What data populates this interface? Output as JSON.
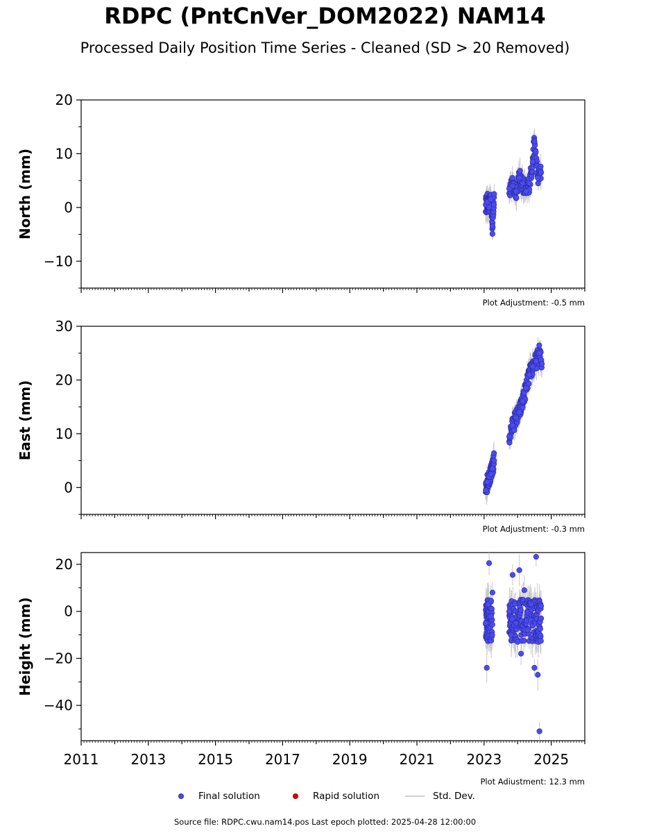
{
  "title": "RDPC (PntCnVer_DOM2022) NAM14",
  "subtitle": "Processed Daily Position Time Series - Cleaned (SD > 20 Removed)",
  "footer": "Source file: RDPC.cwu.nam14.pos  Last epoch plotted: 2025-04-28 12:00:00",
  "legend": {
    "final": "Final solution",
    "rapid": "Rapid solution",
    "sd": "Std. Dev."
  },
  "colors": {
    "final": "#4b4bf0",
    "final_edge": "#2a2a9a",
    "rapid": "#e00000",
    "sd": "#c8c8c8"
  },
  "chart_data": [
    {
      "type": "scatter",
      "ylabel": "North (mm)",
      "adjustment": "Plot Adjustment: -0.5 mm",
      "xlim": [
        2011,
        2026
      ],
      "ylim": [
        -15,
        20
      ],
      "yticks": [
        -10,
        0,
        10,
        20
      ],
      "yticklabels": [
        "−10",
        "0",
        "10",
        "20"
      ],
      "series": [
        {
          "x": [
            2023.05,
            2023.1,
            2023.15,
            2023.2,
            2023.25,
            2023.3,
            2023.75,
            2023.85,
            2023.95,
            2024.05,
            2024.15,
            2024.25,
            2024.35,
            2024.45,
            2024.5,
            2024.6,
            2024.7
          ],
          "y": [
            0.5,
            1.0,
            0.0,
            1.5,
            -3.5,
            2.5,
            3.5,
            4.0,
            3.0,
            5.5,
            4.5,
            3.0,
            4.5,
            8.5,
            12.3,
            5.5,
            6.5
          ]
        }
      ]
    },
    {
      "type": "scatter",
      "ylabel": "East (mm)",
      "adjustment": "Plot Adjustment: -0.3 mm",
      "xlim": [
        2011,
        2026
      ],
      "ylim": [
        -5,
        30
      ],
      "yticks": [
        0,
        10,
        20,
        30
      ],
      "yticklabels": [
        "0",
        "10",
        "20",
        "30"
      ],
      "series": [
        {
          "x": [
            2023.05,
            2023.1,
            2023.15,
            2023.2,
            2023.25,
            2023.3,
            2023.75,
            2023.85,
            2023.95,
            2024.05,
            2024.15,
            2024.25,
            2024.35,
            2024.45,
            2024.55,
            2024.65,
            2024.72
          ],
          "y": [
            -0.5,
            1.0,
            2.0,
            2.5,
            3.5,
            5.0,
            9.5,
            11.5,
            13.0,
            14.0,
            16.0,
            18.5,
            21.0,
            22.5,
            23.5,
            25.0,
            23.0
          ]
        }
      ]
    },
    {
      "type": "scatter",
      "ylabel": "Height (mm)",
      "adjustment": "Plot Adjustment: 12.3 mm",
      "xlim": [
        2011,
        2026
      ],
      "ylim": [
        -55,
        25
      ],
      "yticks": [
        -40,
        -20,
        0,
        20
      ],
      "yticklabels": [
        "−40",
        "−20",
        "0",
        "20"
      ],
      "xticks": [
        2011,
        2013,
        2015,
        2017,
        2019,
        2021,
        2023,
        2025
      ],
      "series": [
        {
          "x": [
            2023.05,
            2023.08,
            2023.12,
            2023.15,
            2023.2,
            2023.25,
            2023.75,
            2023.8,
            2023.85,
            2023.95,
            2024.05,
            2024.1,
            2024.2,
            2024.3,
            2024.4,
            2024.5,
            2024.55,
            2024.6,
            2024.65,
            2024.7
          ],
          "y": [
            -5,
            -24,
            3,
            20.5,
            -2,
            8,
            0,
            -10,
            15.5,
            -5,
            17.5,
            -18,
            9,
            -8,
            3,
            -24,
            23.2,
            -27,
            -51,
            -3
          ]
        }
      ]
    }
  ]
}
